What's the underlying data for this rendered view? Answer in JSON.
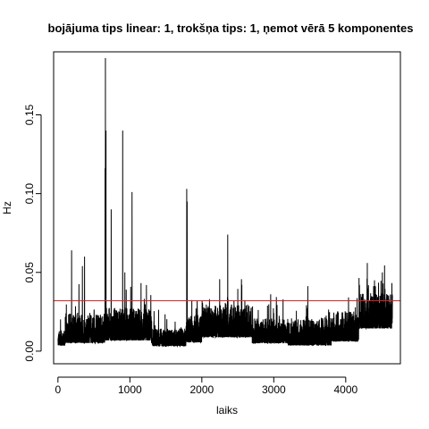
{
  "chart_data": {
    "type": "line",
    "title": "bojājuma tips linear: 1, trokšņa tips: 1, ņemot vērā 5 komponentes",
    "xlabel": "laiks",
    "ylabel": "Hz",
    "xlim": [
      -60,
      4760
    ],
    "ylim": [
      -0.008,
      0.19
    ],
    "x_ticks": [
      0,
      1000,
      2000,
      3000,
      4000
    ],
    "x_tick_labels": [
      "0",
      "1000",
      "2000",
      "3000",
      "4000"
    ],
    "y_ticks": [
      0.0,
      0.05,
      0.1,
      0.15
    ],
    "y_tick_labels": [
      "0.00",
      "0.05",
      "0.10",
      "0.15"
    ],
    "threshold": {
      "value": 0.032,
      "color": "#dd2222"
    },
    "series_color": "#000000",
    "n_points": 4650,
    "base_segments": [
      {
        "x0": 0,
        "x1": 100,
        "level": 0.006,
        "noise": 0.006
      },
      {
        "x0": 100,
        "x1": 650,
        "level": 0.01,
        "noise": 0.012
      },
      {
        "x0": 650,
        "x1": 1300,
        "level": 0.012,
        "noise": 0.013
      },
      {
        "x0": 1300,
        "x1": 1780,
        "level": 0.006,
        "noise": 0.007
      },
      {
        "x0": 1780,
        "x1": 2000,
        "level": 0.01,
        "noise": 0.011
      },
      {
        "x0": 2000,
        "x1": 2700,
        "level": 0.014,
        "noise": 0.013
      },
      {
        "x0": 2700,
        "x1": 3200,
        "level": 0.009,
        "noise": 0.01
      },
      {
        "x0": 3200,
        "x1": 3800,
        "level": 0.008,
        "noise": 0.011
      },
      {
        "x0": 3800,
        "x1": 4180,
        "level": 0.011,
        "noise": 0.012
      },
      {
        "x0": 4180,
        "x1": 4650,
        "level": 0.02,
        "noise": 0.014
      }
    ],
    "peaks": [
      {
        "x": 660,
        "y": 0.186
      },
      {
        "x": 668,
        "y": 0.14
      },
      {
        "x": 655,
        "y": 0.116
      },
      {
        "x": 900,
        "y": 0.14
      },
      {
        "x": 1030,
        "y": 0.101
      },
      {
        "x": 740,
        "y": 0.09
      },
      {
        "x": 1790,
        "y": 0.103
      },
      {
        "x": 1796,
        "y": 0.095
      },
      {
        "x": 2360,
        "y": 0.074
      },
      {
        "x": 190,
        "y": 0.064
      },
      {
        "x": 370,
        "y": 0.06
      },
      {
        "x": 340,
        "y": 0.054
      },
      {
        "x": 930,
        "y": 0.05
      },
      {
        "x": 4300,
        "y": 0.056
      },
      {
        "x": 1230,
        "y": 0.042
      },
      {
        "x": 4400,
        "y": 0.045
      },
      {
        "x": 4520,
        "y": 0.043
      }
    ]
  }
}
